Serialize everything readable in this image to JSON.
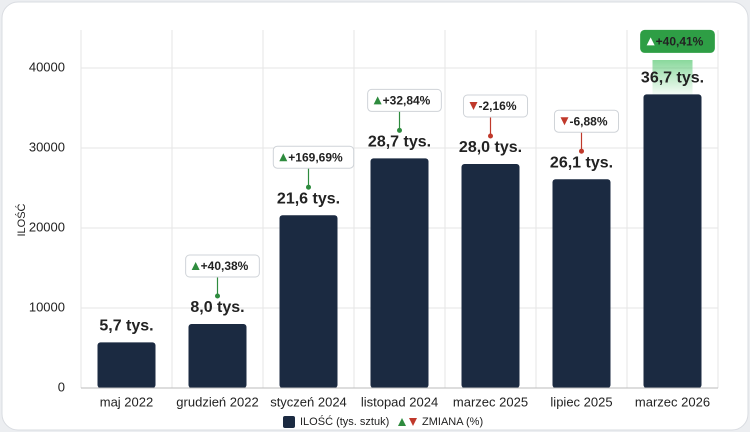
{
  "chart_data": {
    "type": "bar",
    "y_label": "ILOŚĆ",
    "categories": [
      "maj 2022",
      "grudzień 2022",
      "styczeń 2024",
      "listopad 2024",
      "marzec 2025",
      "lipiec 2025",
      "marzec 2026"
    ],
    "series": [
      {
        "name": "ILOŚĆ (tys. sztuk)",
        "color": "#1b2a41",
        "values": [
          5700,
          8000,
          21600,
          28700,
          28000,
          26100,
          36700
        ],
        "value_labels": [
          "5,7 tys.",
          "8,0 tys.",
          "21,6 tys.",
          "28,7 tys.",
          "28,0 tys.",
          "26,1 tys.",
          "36,7 tys."
        ]
      },
      {
        "name": "ZMIANA (%)",
        "values": [
          null,
          40.38,
          169.69,
          32.84,
          -2.16,
          -6.88,
          40.41
        ],
        "value_labels": [
          null,
          "+40,38%",
          "+169,69%",
          "+32,84%",
          "-2,16%",
          "-6,88%",
          "+40,41%"
        ]
      }
    ],
    "up_color": "#2e8b3e",
    "down_color": "#c0392b",
    "ylim": [
      0,
      46000
    ],
    "yticks": [
      0,
      10000,
      20000,
      30000,
      40000
    ],
    "grid": true
  }
}
